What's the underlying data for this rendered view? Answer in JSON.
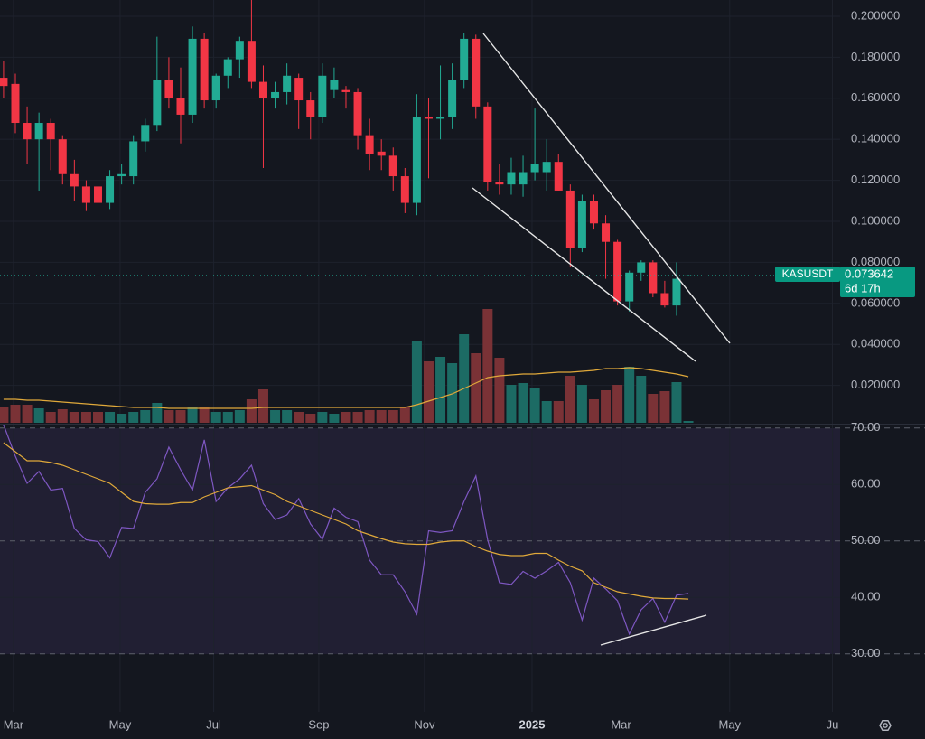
{
  "chart_data": {
    "type": "candlestick",
    "symbol": "KASUSDT",
    "countdown": "6d 17h",
    "xlim": [
      -0.3,
      70.85
    ],
    "xticks": [
      {
        "value": 0.84,
        "label": "Mar"
      },
      {
        "value": 9.87,
        "label": "May"
      },
      {
        "value": 17.8,
        "label": "Jul"
      },
      {
        "value": 26.7,
        "label": "Sep"
      },
      {
        "value": 35.65,
        "label": "Nov"
      },
      {
        "value": 44.76,
        "label": "2025"
      },
      {
        "value": 52.3,
        "label": "Mar"
      },
      {
        "value": 61.5,
        "label": "May"
      },
      {
        "value": 70.2,
        "label": "Ju"
      }
    ],
    "ylim": [
      0.0018,
      0.2079
    ],
    "yticks": [
      {
        "value": 0.02,
        "label": "0.020000"
      },
      {
        "value": 0.04,
        "label": "0.040000"
      },
      {
        "value": 0.06,
        "label": "0.060000"
      },
      {
        "value": 0.08,
        "label": "0.080000"
      },
      {
        "value": 0.1,
        "label": "0.100000"
      },
      {
        "value": 0.12,
        "label": "0.120000"
      },
      {
        "value": 0.14,
        "label": "0.140000"
      },
      {
        "value": 0.16,
        "label": "0.160000"
      },
      {
        "value": 0.18,
        "label": "0.180000"
      },
      {
        "value": 0.2,
        "label": "0.200000"
      }
    ],
    "up_color": "#22ab94",
    "down_color": "#f23645",
    "candles": {
      "open": [
        0.17,
        0.167,
        0.148,
        0.14,
        0.148,
        0.14,
        0.123,
        0.117,
        0.117,
        0.109,
        0.122,
        0.122,
        0.139,
        0.147,
        0.169,
        0.16,
        0.152,
        0.189,
        0.159,
        0.171,
        0.179,
        0.188,
        0.168,
        0.16,
        0.163,
        0.17,
        0.159,
        0.151,
        0.164,
        0.164,
        0.163,
        0.142,
        0.134,
        0.132,
        0.122,
        0.109,
        0.151,
        0.15,
        0.151,
        0.169,
        0.189,
        0.156,
        0.119,
        0.118,
        0.118,
        0.124,
        0.124,
        0.129,
        0.115,
        0.087,
        0.11,
        0.099,
        0.09,
        0.061,
        0.075,
        0.08,
        0.065,
        0.059,
        0.0734
      ],
      "high": [
        0.178,
        0.172,
        0.156,
        0.153,
        0.15,
        0.142,
        0.13,
        0.12,
        0.119,
        0.125,
        0.128,
        0.142,
        0.15,
        0.19,
        0.18,
        0.175,
        0.195,
        0.192,
        0.172,
        0.18,
        0.19,
        0.208,
        0.176,
        0.168,
        0.177,
        0.172,
        0.163,
        0.177,
        0.175,
        0.166,
        0.165,
        0.15,
        0.14,
        0.136,
        0.126,
        0.162,
        0.16,
        0.176,
        0.177,
        0.192,
        0.191,
        0.158,
        0.128,
        0.131,
        0.132,
        0.155,
        0.14,
        0.133,
        0.118,
        0.113,
        0.113,
        0.103,
        0.091,
        0.076,
        0.081,
        0.081,
        0.071,
        0.08,
        0.074
      ],
      "low": [
        0.16,
        0.143,
        0.128,
        0.115,
        0.125,
        0.118,
        0.11,
        0.105,
        0.102,
        0.106,
        0.118,
        0.118,
        0.134,
        0.144,
        0.155,
        0.138,
        0.148,
        0.155,
        0.155,
        0.165,
        0.17,
        0.165,
        0.126,
        0.155,
        0.157,
        0.145,
        0.14,
        0.148,
        0.16,
        0.155,
        0.135,
        0.125,
        0.125,
        0.115,
        0.104,
        0.103,
        0.121,
        0.14,
        0.145,
        0.165,
        0.15,
        0.115,
        0.113,
        0.113,
        0.112,
        0.12,
        0.115,
        0.115,
        0.078,
        0.085,
        0.096,
        0.072,
        0.059,
        0.056,
        0.071,
        0.063,
        0.058,
        0.054,
        0.0733
      ],
      "close": [
        0.166,
        0.148,
        0.14,
        0.148,
        0.14,
        0.123,
        0.117,
        0.109,
        0.109,
        0.122,
        0.123,
        0.139,
        0.147,
        0.169,
        0.16,
        0.152,
        0.189,
        0.159,
        0.171,
        0.179,
        0.188,
        0.168,
        0.16,
        0.163,
        0.171,
        0.159,
        0.151,
        0.171,
        0.169,
        0.163,
        0.142,
        0.133,
        0.132,
        0.122,
        0.109,
        0.151,
        0.15,
        0.151,
        0.169,
        0.189,
        0.156,
        0.119,
        0.118,
        0.124,
        0.124,
        0.128,
        0.129,
        0.115,
        0.087,
        0.11,
        0.099,
        0.09,
        0.061,
        0.075,
        0.08,
        0.065,
        0.059,
        0.072,
        0.073642
      ]
    },
    "volume": {
      "vlim": [
        0,
        468
      ],
      "up_color": "#1c6b64",
      "down_color": "#7a3236",
      "ma_color": "#e0a93a",
      "values": [
        18,
        20,
        20,
        16,
        12,
        15,
        12,
        12,
        12,
        12,
        10,
        12,
        14,
        22,
        14,
        14,
        18,
        18,
        12,
        12,
        14,
        26,
        37,
        14,
        14,
        12,
        10,
        12,
        10,
        12,
        12,
        14,
        14,
        14,
        18,
        90,
        68,
        73,
        66,
        98,
        77,
        126,
        72,
        42,
        44,
        38,
        24,
        24,
        52,
        42,
        26,
        36,
        42,
        62,
        52,
        32,
        35,
        45,
        2
      ],
      "ma": [
        26,
        26,
        25,
        25,
        24,
        23,
        22,
        21,
        20,
        19,
        18,
        17,
        17,
        17,
        16,
        16,
        16,
        16,
        16,
        16,
        16,
        16,
        17,
        17,
        17,
        17,
        17,
        17,
        17,
        17,
        17,
        17,
        17,
        17,
        17,
        20,
        24,
        28,
        32,
        38,
        44,
        50,
        52,
        53,
        54,
        54,
        55,
        56,
        56,
        57,
        58,
        60,
        60,
        61,
        60,
        58,
        56,
        54,
        51
      ]
    },
    "rsi": {
      "ylim": [
        20.2,
        70.6
      ],
      "yticks": [
        {
          "value": 30,
          "label": "30.00"
        },
        {
          "value": 40,
          "label": "40.00"
        },
        {
          "value": 50,
          "label": "50.00"
        },
        {
          "value": 60,
          "label": "60.00"
        },
        {
          "value": 70,
          "label": "70.00"
        }
      ],
      "color": "#7e57c2",
      "ma_color": "#e0a93a",
      "values": [
        70.6,
        65,
        60.2,
        62.3,
        59,
        59.3,
        52.2,
        50.2,
        49.9,
        47,
        52.4,
        52.2,
        58.6,
        61,
        66.6,
        62.6,
        59,
        67.9,
        57,
        59.4,
        61,
        63.4,
        56.6,
        53.8,
        54.6,
        57.5,
        53,
        50.3,
        55.8,
        54.2,
        53.4,
        46.6,
        44,
        44,
        41,
        37,
        51.8,
        51.5,
        51.8,
        57,
        61.5,
        50.2,
        42.6,
        42.3,
        44.6,
        43.4,
        44.7,
        46.2,
        42.6,
        36,
        43.4,
        41.5,
        39.4,
        33.5,
        37.8,
        39.8,
        35.6,
        40.4,
        40.7
      ],
      "ma": [
        67.4,
        65.8,
        64.2,
        64.2,
        63.9,
        63.4,
        62.6,
        61.8,
        61,
        60.2,
        58.6,
        57,
        56.6,
        56.5,
        56.5,
        56.8,
        56.8,
        57.8,
        58.6,
        59.4,
        59.6,
        59.8,
        59,
        58.2,
        57,
        56.2,
        55.4,
        54.6,
        53.8,
        53,
        51.8,
        51.1,
        50.4,
        49.8,
        49.5,
        49.4,
        49.4,
        49.8,
        50,
        50,
        49,
        48.2,
        47.6,
        47.4,
        47.4,
        47.8,
        47.8,
        46.6,
        45.5,
        44.7,
        42.6,
        41.8,
        41,
        40.6,
        40.2,
        39.9,
        39.8,
        39.8,
        39.7
      ]
    }
  }
}
